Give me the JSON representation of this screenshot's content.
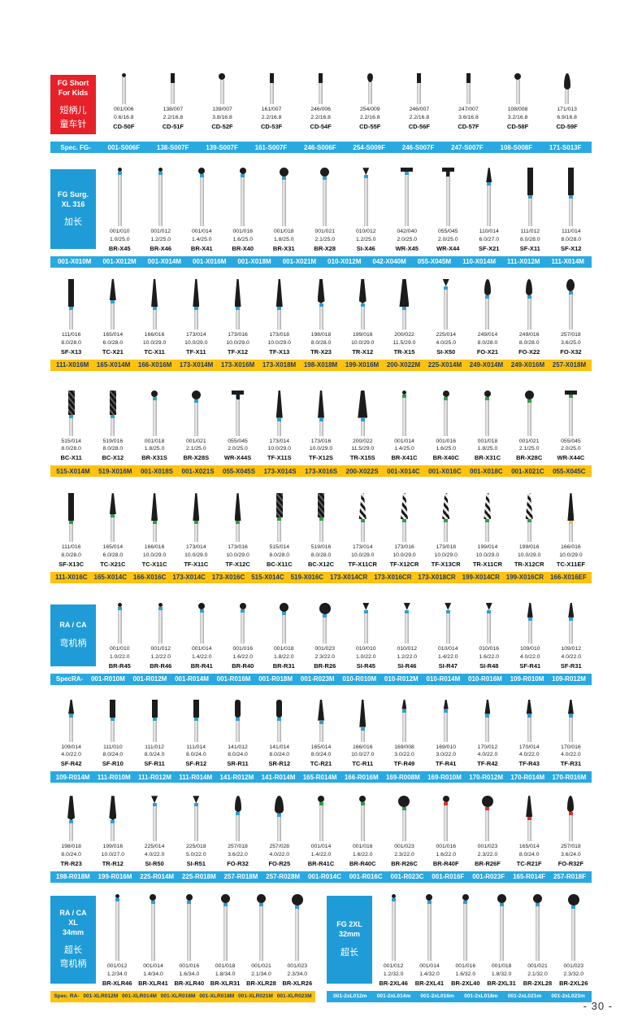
{
  "page": {
    "page_number": "- 30 -"
  },
  "colors": {
    "label_red": "#e62129",
    "label_blue": "#1f9cd8",
    "strip_blue": "#29a9e0",
    "strip_yellow": "#ffc20e",
    "band_medium": "#2e9fd4",
    "band_coarse": "#2f9e44",
    "band_fine": "#d8372c",
    "band_extrafine": "#e8c341"
  },
  "rows": [
    {
      "label": {
        "color": "red",
        "en": [
          "FG Short",
          "For Kids"
        ],
        "zh": [
          "短柄儿",
          "童车针"
        ]
      },
      "band": false,
      "strip": "blue",
      "prefix": "Spec. FG-",
      "burs": [
        {
          "s1": "001/006",
          "s2": "0.6/16.8",
          "m": "CD-50F",
          "h": "ballxs"
        },
        {
          "s1": "138/007",
          "s2": "2.2/16.8",
          "m": "CD-51F",
          "h": "cylxs"
        },
        {
          "s1": "139/007",
          "s2": "3.8/16.8",
          "m": "CD-52F",
          "h": "balls"
        },
        {
          "s1": "161/007",
          "s2": "2.2/16.8",
          "m": "CD-53F",
          "h": "cylxs"
        },
        {
          "s1": "246/006",
          "s2": "2.2/16.8",
          "m": "CD-54F",
          "h": "cylxs"
        },
        {
          "s1": "254/009",
          "s2": "2.2/16.8",
          "m": "CD-55F",
          "h": "pear"
        },
        {
          "s1": "246/007",
          "s2": "2.2/16.8",
          "m": "CD-56F",
          "h": "cylxs"
        },
        {
          "s1": "247/007",
          "s2": "3.6/16.8",
          "m": "CD-57F",
          "h": "cylxs"
        },
        {
          "s1": "108/008",
          "s2": "3.2/16.8",
          "m": "CD-58F",
          "h": "balls"
        },
        {
          "s1": "171/013",
          "s2": "6.9/16.8",
          "m": "CD-59F",
          "h": "flame"
        }
      ],
      "codes": [
        "001-S006F",
        "138-S007F",
        "139-S007F",
        "161-S007F",
        "246-S006F",
        "254-S009F",
        "246-S007F",
        "247-S007F",
        "108-S008F",
        "171-S013F"
      ]
    },
    {
      "label": {
        "color": "blue",
        "en": [
          "FG Surg.",
          "XL 316"
        ],
        "zh": [
          "加长"
        ]
      },
      "strip": "blue",
      "burs": [
        {
          "s1": "001/010",
          "s2": "1.0/25.0",
          "m": "BR-X45",
          "h": "ballxs"
        },
        {
          "s1": "001/012",
          "s2": "1.2/25.0",
          "m": "BR-X46",
          "h": "ballxs"
        },
        {
          "s1": "001/014",
          "s2": "1.4/25.0",
          "m": "BR-X41",
          "h": "balls"
        },
        {
          "s1": "001/016",
          "s2": "1.6/25.0",
          "m": "BR-X40",
          "h": "balls"
        },
        {
          "s1": "001/018",
          "s2": "1.8/25.0",
          "m": "BR-X31",
          "h": "ballm"
        },
        {
          "s1": "001/021",
          "s2": "2.1/25.0",
          "m": "BR-X28",
          "h": "ballm"
        },
        {
          "s1": "010/012",
          "s2": "1.2/25.0",
          "m": "SI-X46",
          "h": "inv"
        },
        {
          "s1": "042/040",
          "s2": "2.0/25.0",
          "m": "WR-X45",
          "h": "wheel"
        },
        {
          "s1": "055/045",
          "s2": "2.0/25.0",
          "m": "WR-X44",
          "h": "wheelt"
        },
        {
          "s1": "110/014",
          "s2": "6.0/27.0",
          "m": "SF-X21",
          "h": "tapers"
        },
        {
          "s1": "111/012",
          "s2": "8.0/28.0",
          "m": "SF-X11",
          "h": "cyll"
        },
        {
          "s1": "111/014",
          "s2": "8.0/28.0",
          "m": "SF-X12",
          "h": "cyll"
        }
      ],
      "codes": [
        "001-X010M",
        "001-X012M",
        "001-X014M",
        "001-X016M",
        "001-X018M",
        "001-X021M",
        "010-X012M",
        "042-X040M",
        "055-X045M",
        "110-X014M",
        "111-X012M",
        "111-X014M"
      ]
    },
    {
      "strip": "yellow",
      "burs": [
        {
          "s1": "111/016",
          "s2": "8.0/28.0",
          "m": "SF-X13",
          "h": "cyll"
        },
        {
          "s1": "165/014",
          "s2": "6.0/28.0",
          "m": "TC-X21",
          "h": "taper"
        },
        {
          "s1": "166/016",
          "s2": "10.0/29.0",
          "m": "TC-X11",
          "h": "taperl"
        },
        {
          "s1": "173/014",
          "s2": "10.0/29.0",
          "m": "TF-X11",
          "h": "taperl"
        },
        {
          "s1": "173/016",
          "s2": "10.0/29.0",
          "m": "TF-X12",
          "h": "taperl"
        },
        {
          "s1": "173/018",
          "s2": "10.0/29.0",
          "m": "TF-X13",
          "h": "taperl"
        },
        {
          "s1": "198/018",
          "s2": "8.0/28.0",
          "m": "TR-X23",
          "h": "taperrnd"
        },
        {
          "s1": "199/016",
          "s2": "10.0/29.0",
          "m": "TR-X12",
          "h": "taperrnd"
        },
        {
          "s1": "200/022",
          "s2": "11.5/29.0",
          "m": "TR-X15",
          "h": "taperbig"
        },
        {
          "s1": "225/014",
          "s2": "4.0/25.0",
          "m": "SI-X50",
          "h": "inv"
        },
        {
          "s1": "249/014",
          "s2": "8.0/28.0",
          "m": "FO-X21",
          "h": "flame"
        },
        {
          "s1": "249/016",
          "s2": "8.0/28.0",
          "m": "FO-X22",
          "h": "flame"
        },
        {
          "s1": "257/018",
          "s2": "3.6/25.0",
          "m": "FO-X32",
          "h": "bud"
        }
      ],
      "codes": [
        "111-X016M",
        "165-X014M",
        "166-X016M",
        "173-X014M",
        "173-X016M",
        "173-X018M",
        "198-X018M",
        "199-X016M",
        "200-X022M",
        "225-X014M",
        "249-X014M",
        "249-X016M",
        "257-X018M"
      ]
    },
    {
      "strip": "yellow",
      "burs": [
        {
          "s1": "515/014",
          "s2": "8.0/28.0",
          "m": "BC-X11",
          "h": "spiral"
        },
        {
          "s1": "519/016",
          "s2": "8.0/28.0",
          "m": "BC-X12",
          "h": "spiral"
        },
        {
          "s1": "001/018",
          "s2": "1.8/25.0",
          "m": "BR-X31S",
          "h": "balls"
        },
        {
          "s1": "001/021",
          "s2": "2.1/25.0",
          "m": "BR-X28S",
          "h": "ballm"
        },
        {
          "s1": "055/045",
          "s2": "2.0/25.0",
          "m": "WR-X44S",
          "h": "wheelt"
        },
        {
          "s1": "173/014",
          "s2": "10.0/29.0",
          "m": "TF-X11S",
          "h": "taperl"
        },
        {
          "s1": "173/016",
          "s2": "10.0/29.0",
          "m": "TF-X12S",
          "h": "taperl"
        },
        {
          "s1": "200/022",
          "s2": "11.5/29.0",
          "m": "TR-X15S",
          "h": "taperbig"
        },
        {
          "s1": "001/014",
          "s2": "1.4/25.0",
          "m": "BR-X41C",
          "h": "ballxs"
        },
        {
          "s1": "001/016",
          "s2": "1.6/25.0",
          "m": "BR-X40C",
          "h": "balls"
        },
        {
          "s1": "001/018",
          "s2": "1.8/25.0",
          "m": "BR-X31C",
          "h": "balls"
        },
        {
          "s1": "001/021",
          "s2": "2.1/25.0",
          "m": "BR-X28C",
          "h": "ballm"
        },
        {
          "s1": "055/045",
          "s2": "2.0/25.0",
          "m": "WR-X44C",
          "h": "wheel"
        }
      ],
      "codes": [
        "515-X014M",
        "519-X016M",
        "001-X018S",
        "001-X021S",
        "055-X045S",
        "173-X014S",
        "173-X016S",
        "200-X022S",
        "001-X014C",
        "001-X016C",
        "001-X018C",
        "001-X021C",
        "055-X045C"
      ]
    },
    {
      "strip": "yellow",
      "burs": [
        {
          "s1": "111/016",
          "s2": "8.0/28.0",
          "m": "SF-X13C",
          "h": "cyll"
        },
        {
          "s1": "165/014",
          "s2": "6.0/28.0",
          "m": "TC-X21C",
          "h": "taper"
        },
        {
          "s1": "166/016",
          "s2": "10.0/29.0",
          "m": "TC-X11C",
          "h": "taperl"
        },
        {
          "s1": "173/014",
          "s2": "10.0/29.0",
          "m": "TF-X11C",
          "h": "taperl"
        },
        {
          "s1": "173/016",
          "s2": "10.0/29.0",
          "m": "TF-X12C",
          "h": "taperl"
        },
        {
          "s1": "515/014",
          "s2": "8.0/28.0",
          "m": "BC-X11C",
          "h": "spiral"
        },
        {
          "s1": "519/016",
          "s2": "8.0/28.0",
          "m": "BC-X12C",
          "h": "spiral"
        },
        {
          "s1": "173/014",
          "s2": "10.0/29.0",
          "m": "TF-X11CR",
          "h": "stripe"
        },
        {
          "s1": "173/016",
          "s2": "10.0/29.0",
          "m": "TF-X12CR",
          "h": "stripe"
        },
        {
          "s1": "173/018",
          "s2": "10.0/29.0",
          "m": "TF-X13CR",
          "h": "stripe"
        },
        {
          "s1": "199/014",
          "s2": "10.0/29.0",
          "m": "TR-X11CR",
          "h": "stripe"
        },
        {
          "s1": "199/016",
          "s2": "10.0/29.0",
          "m": "TR-X12CR",
          "h": "stripe"
        },
        {
          "s1": "166/016",
          "s2": "10.0/29.0",
          "m": "TC-X11EF",
          "h": "taperl"
        }
      ],
      "codes": [
        "111-X016C",
        "165-X014C",
        "166-X016C",
        "173-X014C",
        "173-X016C",
        "515-X014C",
        "519-X016C",
        "173-X014CR",
        "173-X016CR",
        "173-X018CR",
        "199-X014CR",
        "199-X016CR",
        "166-X016EF"
      ]
    },
    {
      "label": {
        "color": "blue",
        "en": [
          "RA / CA"
        ],
        "zh": [
          "弯机柄"
        ]
      },
      "strip": "blue",
      "prefix": "SpecRA-",
      "burs": [
        {
          "s1": "001/010",
          "s2": "1.0/22.0",
          "m": "BR-R45",
          "h": "ballxs"
        },
        {
          "s1": "001/012",
          "s2": "1.2/22.0",
          "m": "BR-R46",
          "h": "ballxs"
        },
        {
          "s1": "001/014",
          "s2": "1.4/22.0",
          "m": "BR-R41",
          "h": "balls"
        },
        {
          "s1": "001/016",
          "s2": "1.6/22.0",
          "m": "BR-R40",
          "h": "balls"
        },
        {
          "s1": "001/018",
          "s2": "1.8/22.0",
          "m": "BR-R31",
          "h": "ballm"
        },
        {
          "s1": "001/023",
          "s2": "2.3/22.0",
          "m": "BR-R26",
          "h": "balll"
        },
        {
          "s1": "010/010",
          "s2": "1.0/22.0",
          "m": "SI-R45",
          "h": "inv"
        },
        {
          "s1": "010/012",
          "s2": "1.2/22.0",
          "m": "SI-R46",
          "h": "inv"
        },
        {
          "s1": "010/014",
          "s2": "1.4/22.0",
          "m": "SI-R47",
          "h": "inv"
        },
        {
          "s1": "010/016",
          "s2": "1.6/22.0",
          "m": "SI-R48",
          "h": "inv"
        },
        {
          "s1": "109/010",
          "s2": "4.0/22.0",
          "m": "SF-R41",
          "h": "tapers"
        },
        {
          "s1": "109/012",
          "s2": "4.0/22.0",
          "m": "SF-R31",
          "h": "tapers"
        }
      ],
      "codes": [
        "001-R010M",
        "001-R012M",
        "001-R014M",
        "001-R016M",
        "001-R018M",
        "001-R023M",
        "010-R010M",
        "010-R012M",
        "010-R014M",
        "010-R016M",
        "109-R010M",
        "109-R012M"
      ]
    },
    {
      "strip": "blue",
      "burs": [
        {
          "s1": "109/014",
          "s2": "4.0/22.0",
          "m": "SF-R42",
          "h": "tapers"
        },
        {
          "s1": "111/010",
          "s2": "8.0/24.0",
          "m": "SF-R10",
          "h": "cyl"
        },
        {
          "s1": "111/012",
          "s2": "8.0/24.0",
          "m": "SF-R11",
          "h": "cyl"
        },
        {
          "s1": "111/014",
          "s2": "8.0/24.0",
          "m": "SF-R12",
          "h": "cyl"
        },
        {
          "s1": "141/012",
          "s2": "8.0/24.0",
          "m": "SR-R11",
          "h": "cylr"
        },
        {
          "s1": "141/014",
          "s2": "8.0/24.0",
          "m": "SR-R12",
          "h": "cylr"
        },
        {
          "s1": "165/014",
          "s2": "8.0/24.0",
          "m": "TC-R21",
          "h": "taper"
        },
        {
          "s1": "166/016",
          "s2": "10.0/27.0",
          "m": "TC-R11",
          "h": "taperl"
        },
        {
          "s1": "169/008",
          "s2": "3.0/22.0",
          "m": "TF-R49",
          "h": "taperxs"
        },
        {
          "s1": "169/010",
          "s2": "3.0/22.0",
          "m": "TF-R41",
          "h": "taperxs"
        },
        {
          "s1": "170/012",
          "s2": "4.0/22.0",
          "m": "TF-R42",
          "h": "tapers"
        },
        {
          "s1": "170/014",
          "s2": "4.0/22.0",
          "m": "TF-R43",
          "h": "tapers"
        },
        {
          "s1": "170/016",
          "s2": "4.0/22.0",
          "m": "TF-R31",
          "h": "tapers"
        }
      ],
      "codes": [
        "109-R014M",
        "111-R010M",
        "111-R012M",
        "111-R014M",
        "141-R012M",
        "141-R014M",
        "165-R014M",
        "166-R016M",
        "169-R008M",
        "169-R010M",
        "170-R012M",
        "170-R014M",
        "170-R016M"
      ]
    },
    {
      "strip": "blue",
      "burs": [
        {
          "s1": "198/018",
          "s2": "8.0/24.0",
          "m": "TR-R23",
          "h": "taperrnd"
        },
        {
          "s1": "199/016",
          "s2": "10.0/27.0",
          "m": "TR-R12",
          "h": "taperrnd"
        },
        {
          "s1": "225/014",
          "s2": "4.0/22.0",
          "m": "SI-R50",
          "h": "inv"
        },
        {
          "s1": "225/018",
          "s2": "5.0/22.0",
          "m": "SI-R51",
          "h": "inv"
        },
        {
          "s1": "257/018",
          "s2": "3.6/22.0",
          "m": "FO-R32",
          "h": "flame"
        },
        {
          "s1": "257/028",
          "s2": "4.0/22.0",
          "m": "FO-R25",
          "h": "flamebig"
        },
        {
          "s1": "001/014",
          "s2": "1.4/22.0",
          "m": "BR-R41C",
          "h": "balls"
        },
        {
          "s1": "001/016",
          "s2": "1.6/22.0",
          "m": "BR-R40C",
          "h": "balls"
        },
        {
          "s1": "001/023",
          "s2": "2.3/22.0",
          "m": "BR-R26C",
          "h": "balll"
        },
        {
          "s1": "001/016",
          "s2": "1.6/22.0",
          "m": "BR-R40F",
          "h": "balls"
        },
        {
          "s1": "001/023",
          "s2": "2.3/22.0",
          "m": "BR-R26F",
          "h": "balll"
        },
        {
          "s1": "165/014",
          "s2": "8.0/24.0",
          "m": "TC-R21F",
          "h": "taper"
        },
        {
          "s1": "257/018",
          "s2": "3.6/24.0",
          "m": "FO-R32F",
          "h": "flame"
        }
      ],
      "codes": [
        "198-R018M",
        "199-R016M",
        "225-R014M",
        "225-R018M",
        "257-R018M",
        "257-R028M",
        "001-R014C",
        "001-R016C",
        "001-R023C",
        "001-R016F",
        "001-R023F",
        "165-R014F",
        "257-R018F"
      ]
    },
    {
      "groups": [
        {
          "label": {
            "color": "blue",
            "en": [
              "RA / CA",
              "XL",
              "34mm"
            ],
            "zh": [
              "超长",
              "弯机柄"
            ]
          },
          "strip": "yellow",
          "prefix": "Spec. RA-",
          "burs": [
            {
              "s1": "001/012",
              "s2": "1.2/34.0",
              "m": "BR-XLR46",
              "h": "ballxs"
            },
            {
              "s1": "001/014",
              "s2": "1.4/34.0",
              "m": "BR-XLR41",
              "h": "balls"
            },
            {
              "s1": "001/016",
              "s2": "1.6/34.0",
              "m": "BR-XLR40",
              "h": "balls"
            },
            {
              "s1": "001/018",
              "s2": "1.8/34.0",
              "m": "BR-XLR31",
              "h": "ballm"
            },
            {
              "s1": "001/021",
              "s2": "2.1/34.0",
              "m": "BR-XLR28",
              "h": "ballm"
            },
            {
              "s1": "001/023",
              "s2": "2.3/34.0",
              "m": "BR-XLR26",
              "h": "balll"
            }
          ],
          "codes": [
            "001-XLR012M",
            "001-XLR014M",
            "001-XLR016M",
            "001-XLR018M",
            "001-XLR021M",
            "001-XLR023M"
          ]
        },
        {
          "label": {
            "color": "blue",
            "en": [
              "FG 2XL",
              "32mm"
            ],
            "zh": [
              "超长"
            ]
          },
          "strip": "blue",
          "burs": [
            {
              "s1": "001/012",
              "s2": "1.2/32.0",
              "m": "BR-2XL46",
              "h": "ballxs"
            },
            {
              "s1": "001/014",
              "s2": "1.4/32.0",
              "m": "BR-2XL41",
              "h": "balls"
            },
            {
              "s1": "001/016",
              "s2": "1.6/32.0",
              "m": "BR-2XL40",
              "h": "balls"
            },
            {
              "s1": "001/018",
              "s2": "1.8/32.0",
              "m": "BR-2XL31",
              "h": "ballm"
            },
            {
              "s1": "001/021",
              "s2": "2.1/32.0",
              "m": "BR-2XL28",
              "h": "ballm"
            },
            {
              "s1": "001/023",
              "s2": "2.3/32.0",
              "m": "BR-2XL26",
              "h": "balll"
            }
          ],
          "codes": [
            "001-2xL012m",
            "001-2xL014m",
            "001-2xL016m",
            "001-2xL018m",
            "001-2xL021m",
            "001-2xL023m"
          ]
        }
      ]
    }
  ]
}
